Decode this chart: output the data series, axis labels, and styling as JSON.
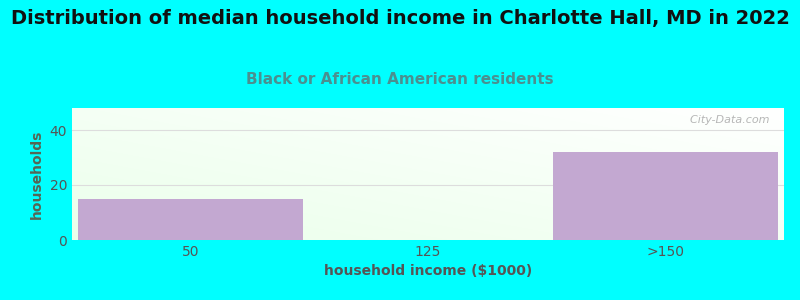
{
  "title": "Distribution of median household income in Charlotte Hall, MD in 2022",
  "subtitle": "Black or African American residents",
  "xlabel": "household income ($1000)",
  "ylabel": "households",
  "categories": [
    "50",
    "125",
    ">150"
  ],
  "values": [
    15,
    0,
    32
  ],
  "bar_color": "#C3A8D1",
  "ylim": [
    0,
    48
  ],
  "yticks": [
    0,
    20,
    40
  ],
  "background_color": "#00FFFF",
  "title_fontsize": 14,
  "subtitle_fontsize": 11,
  "subtitle_color": "#4a9090",
  "axis_label_color": "#555555",
  "axis_label_fontsize": 10,
  "tick_fontsize": 10,
  "tick_color": "#555555",
  "watermark": "  City-Data.com",
  "ylabel_color": "#556655"
}
